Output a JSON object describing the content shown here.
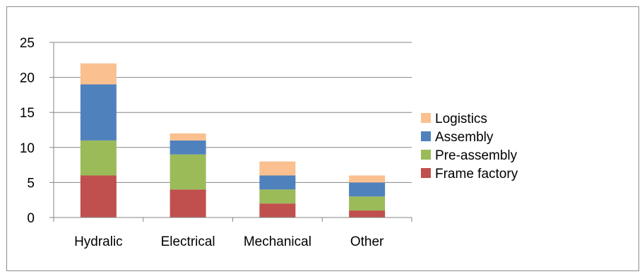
{
  "chart_data": {
    "type": "bar",
    "stacked": true,
    "title": "",
    "xlabel": "",
    "ylabel": "",
    "categories": [
      "Hydralic",
      "Electrical",
      "Mechanical",
      "Other"
    ],
    "ylim": [
      0,
      25
    ],
    "yticks": [
      0,
      5,
      10,
      15,
      20,
      25
    ],
    "grid": true,
    "legend_position": "right",
    "series": [
      {
        "name": "Frame factory",
        "color": "#c0504d",
        "values": [
          6,
          4,
          2,
          1
        ]
      },
      {
        "name": "Pre-assembly",
        "color": "#9bbb59",
        "values": [
          5,
          5,
          2,
          2
        ]
      },
      {
        "name": "Assembly",
        "color": "#4f81bd",
        "values": [
          8,
          2,
          2,
          2
        ]
      },
      {
        "name": "Logistics",
        "color": "#fac08f",
        "values": [
          3,
          1,
          2,
          1
        ]
      }
    ]
  }
}
